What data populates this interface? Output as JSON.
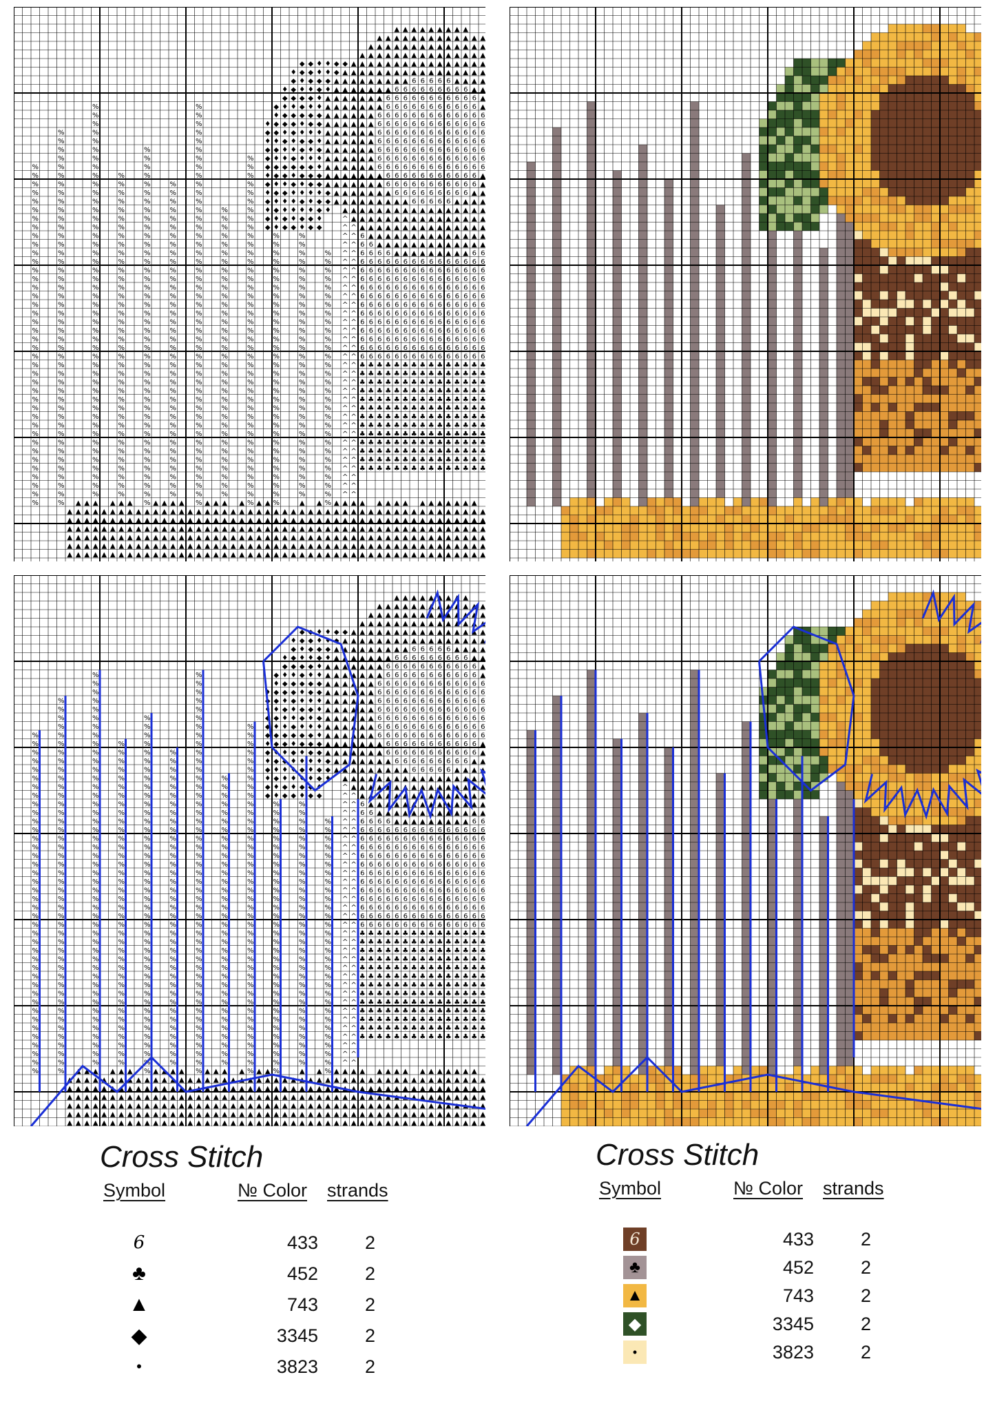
{
  "panels": [
    {
      "variant": "symbols",
      "outlined": false
    },
    {
      "variant": "colored",
      "outlined": false
    },
    {
      "variant": "symbols",
      "outlined": true
    },
    {
      "variant": "colored",
      "outlined": true
    }
  ],
  "legends": [
    {
      "title": "Cross Stitch",
      "headers": {
        "symbol": "Symbol",
        "number": "№ Color",
        "strands": "strands"
      },
      "rows": [
        {
          "symbol": "6",
          "icon": "six-glyph",
          "color_no": "433",
          "strands": "2"
        },
        {
          "symbol": "♣",
          "icon": "club-icon",
          "color_no": "452",
          "strands": "2"
        },
        {
          "symbol": "▲",
          "icon": "triangle-icon",
          "color_no": "743",
          "strands": "2"
        },
        {
          "symbol": "◆",
          "icon": "diamond-icon",
          "color_no": "3345",
          "strands": "2"
        },
        {
          "symbol": "•",
          "icon": "dot-icon",
          "color_no": "3823",
          "strands": "2"
        }
      ]
    },
    {
      "title": "Cross Stitch",
      "headers": {
        "symbol": "Symbol",
        "number": "№ Color",
        "strands": "strands"
      },
      "rows": [
        {
          "symbol": "6",
          "icon": "six-glyph",
          "color_no": "433",
          "strands": "2",
          "swatch": "#6f3f27",
          "ink": "#f3e6d4"
        },
        {
          "symbol": "♣",
          "icon": "club-icon",
          "color_no": "452",
          "strands": "2",
          "swatch": "#a39396",
          "ink": "#000000"
        },
        {
          "symbol": "▲",
          "icon": "triangle-icon",
          "color_no": "743",
          "strands": "2",
          "swatch": "#f2b843",
          "ink": "#000000"
        },
        {
          "symbol": "◆",
          "icon": "diamond-icon",
          "color_no": "3345",
          "strands": "2",
          "swatch": "#2f5127",
          "ink": "#ffffff"
        },
        {
          "symbol": "•",
          "icon": "dot-icon",
          "color_no": "3823",
          "strands": "2",
          "swatch": "#fbe8b5",
          "ink": "#000000"
        }
      ]
    }
  ],
  "palette": {
    "brown": "#6f3f27",
    "mauve": "#8a7a7b",
    "gold": "#f2b843",
    "orange": "#e39a3a",
    "green": "#2f5127",
    "lightgreen": "#a9c07e",
    "cream": "#fbe8b5",
    "outline": "#1a2fd6"
  }
}
